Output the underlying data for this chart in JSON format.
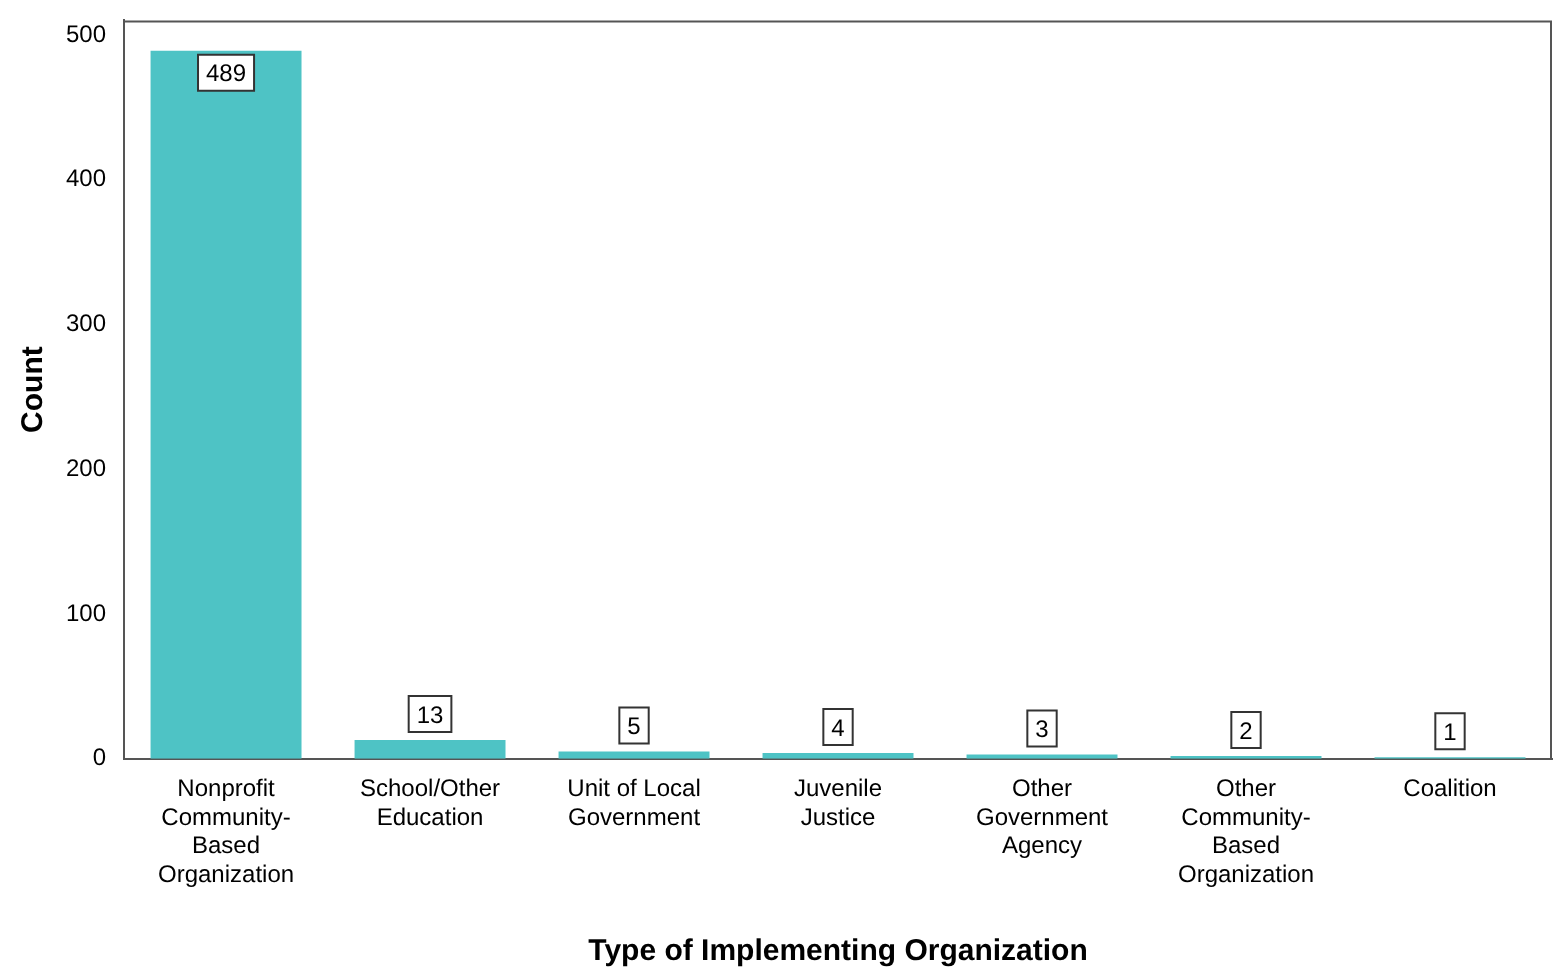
{
  "chart_data": {
    "type": "bar",
    "xlabel": "Type of Implementing Organization",
    "ylabel": "Count",
    "categories": [
      "Nonprofit Community-Based Organization",
      "School/Other Education",
      "Unit of Local Government",
      "Juvenile Justice",
      "Other Government Agency",
      "Other Community-Based Organization",
      "Coalition"
    ],
    "values": [
      489,
      13,
      5,
      4,
      3,
      2,
      1
    ],
    "color": "#4ec3c5",
    "ylim": [
      0,
      510
    ],
    "yticks": [
      0,
      100,
      200,
      300,
      400,
      500
    ],
    "grid": false,
    "legend": false,
    "data_labels": true
  }
}
